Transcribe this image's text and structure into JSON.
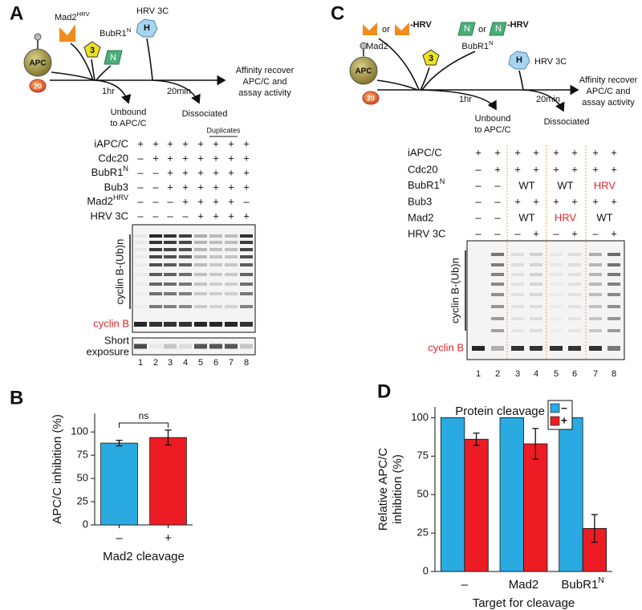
{
  "panels": {
    "A": {
      "label": "A",
      "schematic": {
        "mad2": {
          "base": "Mad2",
          "sup": "HRV"
        },
        "bubr1": {
          "base": "BubR1",
          "sup": "N"
        },
        "bub3_icon": "3",
        "bubr1_icon": "N",
        "apc": "APC",
        "cdc20_icon": "20",
        "protease": "HRV 3C",
        "protease_icon": "H",
        "step1": "1hr",
        "step2": "20min",
        "outcome": [
          "Affinity recover",
          "APC/C and",
          "assay activity"
        ],
        "branch1": [
          "Unbound",
          "to APC/C"
        ],
        "branch2": "Dissociated"
      },
      "gel": {
        "note": "Duplicates",
        "highlight_color": "#e0262b",
        "rows": [
          {
            "label": "iAPC/C",
            "cells": [
              "+",
              "+",
              "+",
              "+",
              "+",
              "+",
              "+",
              "+"
            ]
          },
          {
            "label": "Cdc20",
            "cells": [
              "–",
              "+",
              "+",
              "+",
              "+",
              "+",
              "+",
              "+"
            ]
          },
          {
            "label": {
              "base": "BubR1",
              "sup": "N"
            },
            "cells": [
              "–",
              "–",
              "+",
              "+",
              "+",
              "+",
              "+",
              "+"
            ]
          },
          {
            "label": "Bub3",
            "cells": [
              "–",
              "–",
              "+",
              "+",
              "+",
              "+",
              "+",
              "+"
            ]
          },
          {
            "label": {
              "base": "Mad2",
              "sup": "HRV"
            },
            "cells": [
              "–",
              "–",
              "–",
              "+",
              "+",
              "+",
              "+",
              "–"
            ]
          },
          {
            "label": "HRV 3C",
            "cells": [
              "–",
              "–",
              "–",
              "–",
              "+",
              "+",
              "+",
              "+"
            ]
          }
        ],
        "ladder_label": "cyclin B-(Ub)n",
        "substrate_label": "cyclin B",
        "inset_label": [
          "Short",
          "exposure"
        ],
        "lanes": [
          1,
          2,
          3,
          4,
          5,
          6,
          7,
          8
        ]
      }
    },
    "C": {
      "label": "C",
      "schematic": {
        "or1": "or",
        "tag1": "-HRV",
        "or2": "or",
        "tag2": "-HRV",
        "mad2": "Mad2",
        "bubr1": {
          "base": "BubR1",
          "sup": "N"
        },
        "bubr1_icon1": "N",
        "bubr1_icon2": "N",
        "bub3_icon": "3",
        "apc": "APC",
        "cdc20_icon": "20",
        "protease": "HRV 3C",
        "protease_icon": "H",
        "step1": "1hr",
        "step2": "20min",
        "outcome": [
          "Affinity recover",
          "APC/C and",
          "assay activity"
        ],
        "branch1": [
          "Unbound",
          "to APC/C"
        ],
        "branch2": "Dissociated"
      },
      "gel": {
        "highlight_color": "#e0262b",
        "rows": [
          {
            "label": "iAPC/C",
            "cells": [
              "+",
              "+",
              "+",
              "+",
              "+",
              "+",
              "+",
              "+"
            ]
          },
          {
            "label": "Cdc20",
            "cells": [
              "–",
              "+",
              "+",
              "+",
              "+",
              "+",
              "+",
              "+"
            ]
          },
          {
            "label": {
              "base": "BubR1",
              "sup": "N"
            },
            "cells": [
              "–",
              "–",
              "WT",
              "WT",
              "HRV"
            ],
            "highlight_cells": [
              4
            ]
          },
          {
            "label": "Bub3",
            "cells": [
              "–",
              "–",
              "+",
              "+",
              "+",
              "+",
              "+",
              "+"
            ]
          },
          {
            "label": "Mad2",
            "cells": [
              "–",
              "–",
              "WT",
              "HRV",
              "WT"
            ],
            "highlight_cells": [
              3
            ]
          },
          {
            "label": "HRV 3C",
            "cells": [
              "–",
              "–",
              "–",
              "+",
              "–",
              "+",
              "–",
              "+"
            ]
          }
        ],
        "ladder_label": "cyclin B-(Ub)n",
        "substrate_label": "cyclin B",
        "lanes": [
          1,
          2,
          3,
          4,
          5,
          6,
          7,
          8
        ]
      }
    }
  },
  "chart_data": [
    {
      "type": "bar",
      "panel": "B",
      "ylabel": "APC/C inhibition (%)",
      "xlabel": "Mad2 cleavage",
      "categories": [
        "–",
        "+"
      ],
      "values": [
        88,
        94
      ],
      "errors": [
        3,
        8
      ],
      "colors": [
        "#29abe2",
        "#ed1c24"
      ],
      "ylim": [
        0,
        120
      ],
      "yticks": [
        0,
        25,
        50,
        75,
        100
      ],
      "annotation": "ns"
    },
    {
      "type": "grouped_bar",
      "panel": "D",
      "legend_title": "Protein cleavage",
      "legend": "top-right",
      "ylabel": [
        "Relative APC/C",
        "inhibition (%)"
      ],
      "xlabel": "Target for cleavage",
      "categories": [
        "–",
        "Mad2",
        {
          "base": "BubR1",
          "sup": "N"
        }
      ],
      "series": [
        {
          "name": "–",
          "color": "#29abe2",
          "values": [
            100,
            100,
            100
          ]
        },
        {
          "name": "+",
          "color": "#ed1c24",
          "values": [
            86,
            83,
            28
          ],
          "errors": [
            4,
            10,
            9
          ]
        }
      ],
      "ylim": [
        0,
        107
      ],
      "yticks": [
        0,
        25,
        50,
        75,
        100
      ]
    }
  ]
}
